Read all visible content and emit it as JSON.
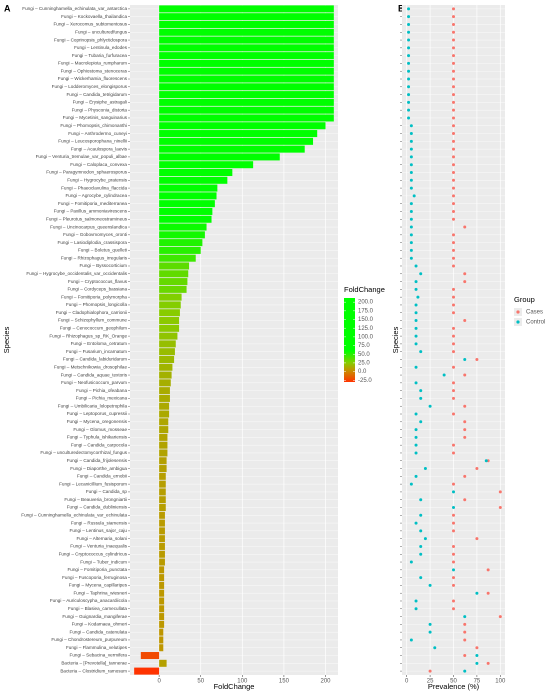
{
  "panel_labels": [
    "A",
    "B"
  ],
  "chart_data": [
    {
      "type": "bar",
      "orientation": "horizontal",
      "x_label": "FoldChange",
      "y_label": "Species",
      "categories": [
        "Fungi – Cunninghamella_echinulata_var_antarctica",
        "Fungi – Kockovaella_thailandica",
        "Fungi – Xerocomus_subtomentosus",
        "Fungi – unculturedfungus",
        "Fungi – Coprinopsis_phlyctidospora",
        "Fungi – Lentinula_edodes",
        "Fungi – Tubaria_furfuracea",
        "Fungi – Macrolepiota_rumpharum",
        "Fungi – Ophiostoma_stenoceras",
        "Fungi – Wickerhamia_fluorescens",
        "Fungi – Lodderomyces_elongisporus",
        "Fungi – Candida_tetrigidarum",
        "Fungi – Erysiphe_astragali",
        "Fungi – Physconia_distorta",
        "Fungi – Mycetinis_sanguinarius",
        "Fungi – Phomopsis_chimonanthi",
        "Fungi – Anthrodermo_cuneyi",
        "Fungi – Leucosporophana_ninellii",
        "Fungi – Acaulospora_laevis",
        "Fungi – Venturia_tremulae_var_populi_albae",
        "Fungi – Caloplaca_convexa",
        "Fungi – Paragymnodon_sphaerosporus",
        "Fungi – Hygrocybe_pratensis",
        "Fungi – Phaeoclavulina_flaccida",
        "Fungi – Agrocybe_cylindracea",
        "Fungi – Fomitiporia_mediterranea",
        "Fungi – Paxillus_ammoniavirescens",
        "Fungi – Pleurotus_salmoneostramineus",
        "Fungi – Uncinocarpus_queenslandica",
        "Fungi – Gobovmomyces_oronti",
        "Fungi – Lasiodiplodia_crassispora",
        "Fungi – Boletus_quelleti",
        "Fungi – Rhizophagus_irregularis",
        "Fungi – Byssocorticium",
        "Fungi – Hygrocybe_occidentalis_var_occidentalis",
        "Fungi – Cryptococcus_flavus",
        "Fungi – Cordyceps_bassiana",
        "Fungi – Fomitiporia_polymorpha",
        "Fungi – Phomopsis_longicolla",
        "Fungi – Cladophialophora_carrionii",
        "Fungi – Schizophyllum_commune",
        "Fungi – Cenococcum_geophilum",
        "Fungi – Rhizophagus_sp_RK_Orange",
        "Fungi – Entoloma_cetratum",
        "Fungi – Fusarium_incarnatum",
        "Fungi – Candida_labiduridarum",
        "Fungi – Metschnikowia_drosophilae",
        "Fungi – Candida_aquae_textoris",
        "Fungi – Neofusicoccum_parvum",
        "Fungi – Pichia_ofeabana",
        "Fungi – Pichia_mexicana",
        "Fungi – Umbilicaria_lolopetrophila",
        "Fungi – Leptoporus_cupressii",
        "Fungi – Mycena_oregonensis",
        "Fungi – Glomus_mosseae",
        "Fungi – Typhula_ishikariensis",
        "Fungi – Candida_carpocola",
        "Fungi – unculturedectomycorrhizal_fungus",
        "Fungi – Candida_frijolesensis",
        "Fungi – Diaporthe_ambigua",
        "Fungi – Candida_ernobii",
        "Fungi – Lecanicillium_fusisporum",
        "Fungi – Candida_sp",
        "Fungi – Beauveria_brongniartii",
        "Fungi – Candida_dubliniensis",
        "Fungi – Cunninghamella_echinulata_var_echinulata",
        "Fungi – Russula_siamensis",
        "Fungi – Lentinus_sajor_caju",
        "Fungi – Alternaria_solani",
        "Fungi – Venturia_inaequalis",
        "Fungi – Cryptococcus_cylindricus",
        "Fungi – Tuber_indicum",
        "Fungi – Fomitiporia_punctata",
        "Fungi – Fuscoporia_ferruginosa",
        "Fungi – Mycena_capillaripes",
        "Fungi – Taphrina_wiesneri",
        "Fungi – Auriculoscypha_anacardiicola",
        "Fungi – Blasiea_carnecullata",
        "Fungi – Guignardia_mangiferae",
        "Fungi – Kodamaea_ohmeri",
        "Fungi – Candida_catenulata",
        "Fungi – Chondrostereum_purpureum",
        "Fungi – Flammulina_velutipes",
        "Fungi – Sebacina_vermifera",
        "Bacteria – [Prevotella]_tannerae",
        "Bacteria – Clostridium_ramosum"
      ],
      "values": [
        210,
        210,
        210,
        210,
        210,
        210,
        210,
        210,
        210,
        210,
        210,
        210,
        210,
        210,
        210,
        200,
        190,
        185,
        175,
        145,
        113,
        88,
        82,
        70,
        69,
        67,
        64,
        63,
        57,
        55,
        52,
        50,
        44,
        36,
        35,
        34,
        33,
        27,
        26,
        25,
        24,
        24,
        22,
        20,
        19,
        18,
        16,
        15,
        14,
        13,
        13,
        12,
        12,
        11,
        11,
        10,
        10,
        10,
        9,
        9,
        8,
        8,
        8,
        8,
        8,
        7,
        7,
        7,
        7,
        7,
        7,
        7,
        6,
        6,
        6,
        6,
        6,
        6,
        6,
        6,
        5,
        5,
        5,
        -22,
        9,
        -30
      ],
      "xlim": [
        -35,
        215
      ],
      "xticks": [
        0,
        50,
        100,
        150,
        200
      ],
      "grid": true,
      "colorbar": {
        "title": "FoldChange",
        "clim": [
          -30,
          212
        ],
        "stops": [
          {
            "value": -30,
            "color": "#ff3300"
          },
          {
            "value": 0,
            "color": "#cc8800"
          },
          {
            "value": 25,
            "color": "#88cc00"
          },
          {
            "value": 60,
            "color": "#00ff00"
          },
          {
            "value": 212,
            "color": "#00ff00"
          }
        ],
        "ticks": [
          {
            "value": 200,
            "label": "200.0"
          },
          {
            "value": 175,
            "label": "175.0"
          },
          {
            "value": 150,
            "label": "150.0"
          },
          {
            "value": 125,
            "label": "125.0"
          },
          {
            "value": 100,
            "label": "100.0"
          },
          {
            "value": 75,
            "label": "75.0"
          },
          {
            "value": 50,
            "label": "50.0"
          },
          {
            "value": 25,
            "label": "25.0"
          },
          {
            "value": 0,
            "label": "0.0"
          },
          {
            "value": -25,
            "label": "-25.0"
          }
        ]
      }
    },
    {
      "type": "scatter",
      "x_label": "Prevalence (%)",
      "y_label": "Species",
      "legend_title": "Group",
      "series": [
        {
          "name": "Cases",
          "color": "#f8766d",
          "values": [
            50,
            50,
            50,
            50,
            50,
            50,
            50,
            50,
            50,
            50,
            50,
            50,
            50,
            50,
            50,
            50,
            50,
            50,
            50,
            50,
            50,
            50,
            50,
            50,
            50,
            50,
            50,
            50,
            62,
            50,
            50,
            50,
            50,
            50,
            62,
            62,
            50,
            50,
            50,
            50,
            62,
            50,
            50,
            50,
            50,
            75,
            50,
            62,
            50,
            50,
            50,
            62,
            50,
            62,
            62,
            62,
            50,
            50,
            87,
            75,
            62,
            50,
            100,
            62,
            100,
            50,
            50,
            50,
            75,
            50,
            50,
            50,
            87,
            50,
            50,
            87,
            50,
            50,
            100,
            62,
            62,
            62,
            75,
            62,
            87,
            25
          ]
        },
        {
          "name": "Control",
          "color": "#00bfc4",
          "values": [
            2,
            2,
            2,
            2,
            2,
            2,
            2,
            2,
            2,
            2,
            2,
            2,
            2,
            2,
            2,
            5,
            5,
            5,
            5,
            5,
            5,
            5,
            5,
            5,
            8,
            5,
            5,
            5,
            5,
            5,
            5,
            5,
            5,
            10,
            15,
            10,
            10,
            12,
            10,
            10,
            10,
            10,
            10,
            10,
            15,
            62,
            10,
            40,
            10,
            15,
            15,
            25,
            10,
            15,
            10,
            10,
            10,
            10,
            85,
            20,
            10,
            5,
            50,
            15,
            50,
            15,
            10,
            15,
            20,
            15,
            15,
            5,
            50,
            15,
            25,
            75,
            10,
            10,
            62,
            25,
            25,
            5,
            30,
            75,
            75,
            62
          ]
        }
      ],
      "xlim": [
        -5,
        105
      ],
      "xticks": [
        0,
        25,
        50,
        75,
        100
      ],
      "grid": true
    }
  ]
}
